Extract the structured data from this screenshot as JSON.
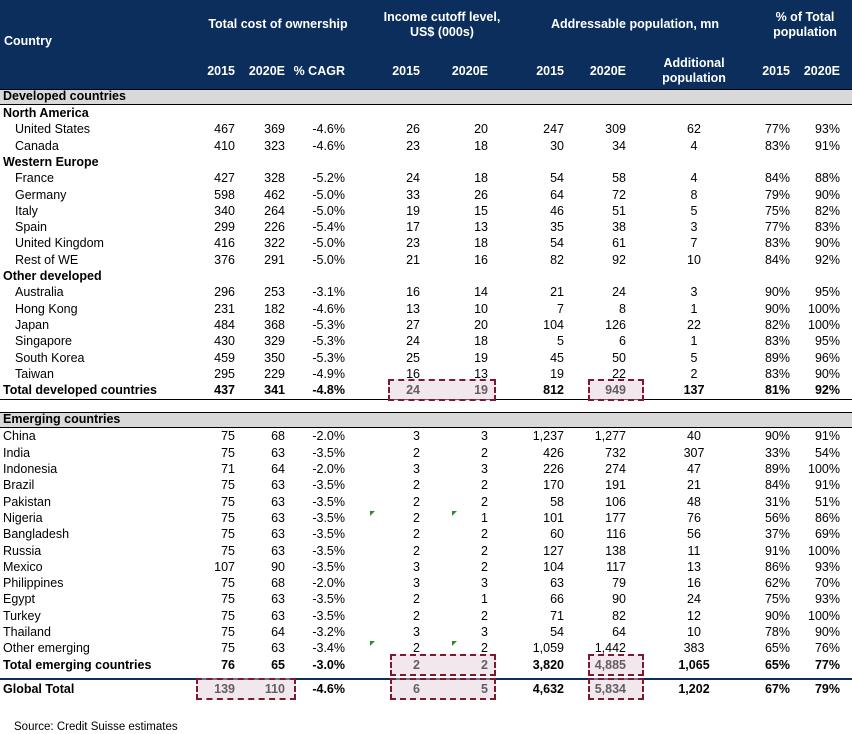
{
  "header": {
    "country": "Country",
    "tco": "Total cost of ownership",
    "income": "Income cutoff level,\nUS$ (000s)",
    "pop": "Addressable population, mn",
    "pct": "% of Total\npopulation",
    "sub": [
      "2015",
      "2020E",
      "% CAGR",
      "2015",
      "2020E",
      "2015",
      "2020E",
      "Additional\npopulation",
      "2015",
      "2020E"
    ]
  },
  "rows": [
    {
      "type": "section",
      "label": "Developed countries"
    },
    {
      "type": "group",
      "label": "North America"
    },
    {
      "type": "data",
      "label": "United States",
      "v": [
        "467",
        "369",
        "-4.6%",
        "26",
        "20",
        "247",
        "309",
        "62",
        "77%",
        "93%"
      ]
    },
    {
      "type": "data",
      "label": "Canada",
      "v": [
        "410",
        "323",
        "-4.6%",
        "23",
        "18",
        "30",
        "34",
        "4",
        "83%",
        "91%"
      ]
    },
    {
      "type": "group",
      "label": "Western Europe"
    },
    {
      "type": "data",
      "label": "France",
      "v": [
        "427",
        "328",
        "-5.2%",
        "24",
        "18",
        "54",
        "58",
        "4",
        "84%",
        "88%"
      ]
    },
    {
      "type": "data",
      "label": "Germany",
      "v": [
        "598",
        "462",
        "-5.0%",
        "33",
        "26",
        "64",
        "72",
        "8",
        "79%",
        "90%"
      ]
    },
    {
      "type": "data",
      "label": "Italy",
      "v": [
        "340",
        "264",
        "-5.0%",
        "19",
        "15",
        "46",
        "51",
        "5",
        "75%",
        "82%"
      ]
    },
    {
      "type": "data",
      "label": "Spain",
      "v": [
        "299",
        "226",
        "-5.4%",
        "17",
        "13",
        "35",
        "38",
        "3",
        "77%",
        "83%"
      ]
    },
    {
      "type": "data",
      "label": "United Kingdom",
      "v": [
        "416",
        "322",
        "-5.0%",
        "23",
        "18",
        "54",
        "61",
        "7",
        "83%",
        "90%"
      ]
    },
    {
      "type": "data",
      "label": "Rest of WE",
      "v": [
        "376",
        "291",
        "-5.0%",
        "21",
        "16",
        "82",
        "92",
        "10",
        "84%",
        "92%"
      ]
    },
    {
      "type": "group",
      "label": "Other developed"
    },
    {
      "type": "data",
      "label": "Australia",
      "v": [
        "296",
        "253",
        "-3.1%",
        "16",
        "14",
        "21",
        "24",
        "3",
        "90%",
        "95%"
      ]
    },
    {
      "type": "data",
      "label": "Hong Kong",
      "v": [
        "231",
        "182",
        "-4.6%",
        "13",
        "10",
        "7",
        "8",
        "1",
        "90%",
        "100%"
      ]
    },
    {
      "type": "data",
      "label": "Japan",
      "v": [
        "484",
        "368",
        "-5.3%",
        "27",
        "20",
        "104",
        "126",
        "22",
        "82%",
        "100%"
      ]
    },
    {
      "type": "data",
      "label": "Singapore",
      "v": [
        "430",
        "329",
        "-5.3%",
        "24",
        "18",
        "5",
        "6",
        "1",
        "83%",
        "95%"
      ]
    },
    {
      "type": "data",
      "label": "South Korea",
      "v": [
        "459",
        "350",
        "-5.3%",
        "25",
        "19",
        "45",
        "50",
        "5",
        "89%",
        "96%"
      ]
    },
    {
      "type": "data",
      "label": "Taiwan",
      "v": [
        "295",
        "229",
        "-4.9%",
        "16",
        "13",
        "19",
        "22",
        "2",
        "83%",
        "90%"
      ]
    },
    {
      "type": "total",
      "label": "Total developed countries",
      "v": [
        "437",
        "341",
        "-4.8%",
        "24",
        "19",
        "812",
        "949",
        "137",
        "81%",
        "92%"
      ]
    },
    {
      "type": "section",
      "label": "Emerging countries"
    },
    {
      "type": "plain",
      "label": "China",
      "v": [
        "75",
        "68",
        "-2.0%",
        "3",
        "3",
        "1,237",
        "1,277",
        "40",
        "90%",
        "91%"
      ]
    },
    {
      "type": "plain",
      "label": "India",
      "v": [
        "75",
        "63",
        "-3.5%",
        "2",
        "2",
        "426",
        "732",
        "307",
        "33%",
        "54%"
      ]
    },
    {
      "type": "plain",
      "label": "Indonesia",
      "v": [
        "71",
        "64",
        "-2.0%",
        "3",
        "3",
        "226",
        "274",
        "47",
        "89%",
        "100%"
      ]
    },
    {
      "type": "plain",
      "label": "Brazil",
      "v": [
        "75",
        "63",
        "-3.5%",
        "2",
        "2",
        "170",
        "191",
        "21",
        "84%",
        "91%"
      ]
    },
    {
      "type": "plain",
      "label": "Pakistan",
      "v": [
        "75",
        "63",
        "-3.5%",
        "2",
        "2",
        "58",
        "106",
        "48",
        "31%",
        "51%"
      ]
    },
    {
      "type": "plain",
      "label": "Nigeria",
      "v": [
        "75",
        "63",
        "-3.5%",
        "2",
        "1",
        "101",
        "177",
        "76",
        "56%",
        "86%"
      ]
    },
    {
      "type": "plain",
      "label": "Bangladesh",
      "v": [
        "75",
        "63",
        "-3.5%",
        "2",
        "2",
        "60",
        "116",
        "56",
        "37%",
        "69%"
      ]
    },
    {
      "type": "plain",
      "label": "Russia",
      "v": [
        "75",
        "63",
        "-3.5%",
        "2",
        "2",
        "127",
        "138",
        "11",
        "91%",
        "100%"
      ]
    },
    {
      "type": "plain",
      "label": "Mexico",
      "v": [
        "107",
        "90",
        "-3.5%",
        "3",
        "2",
        "104",
        "117",
        "13",
        "86%",
        "93%"
      ]
    },
    {
      "type": "plain",
      "label": "Philippines",
      "v": [
        "75",
        "68",
        "-2.0%",
        "3",
        "3",
        "63",
        "79",
        "16",
        "62%",
        "70%"
      ]
    },
    {
      "type": "plain",
      "label": "Egypt",
      "v": [
        "75",
        "63",
        "-3.5%",
        "2",
        "1",
        "66",
        "90",
        "24",
        "75%",
        "93%"
      ]
    },
    {
      "type": "plain",
      "label": "Turkey",
      "v": [
        "75",
        "63",
        "-3.5%",
        "2",
        "2",
        "71",
        "82",
        "12",
        "90%",
        "100%"
      ]
    },
    {
      "type": "plain",
      "label": "Thailand",
      "v": [
        "75",
        "64",
        "-3.2%",
        "3",
        "3",
        "54",
        "64",
        "10",
        "78%",
        "90%"
      ]
    },
    {
      "type": "plain",
      "label": "Other emerging",
      "v": [
        "75",
        "63",
        "-3.4%",
        "2",
        "2",
        "1,059",
        "1,442",
        "383",
        "65%",
        "76%"
      ]
    },
    {
      "type": "total",
      "label": "Total emerging countries",
      "v": [
        "76",
        "65",
        "-3.0%",
        "2",
        "2",
        "3,820",
        "4,885",
        "1,065",
        "65%",
        "77%"
      ]
    },
    {
      "type": "global",
      "label": "Global Total",
      "v": [
        "139",
        "110",
        "-4.6%",
        "6",
        "5",
        "4,632",
        "5,834",
        "1,202",
        "67%",
        "79%"
      ]
    }
  ],
  "source": "Source: Credit Suisse estimates",
  "colors": {
    "header_bg": "#0b2e5c",
    "section_bg": "#d9d9d9",
    "highlight_border": "#7b1a2e",
    "tick": "#2e8b2e"
  }
}
